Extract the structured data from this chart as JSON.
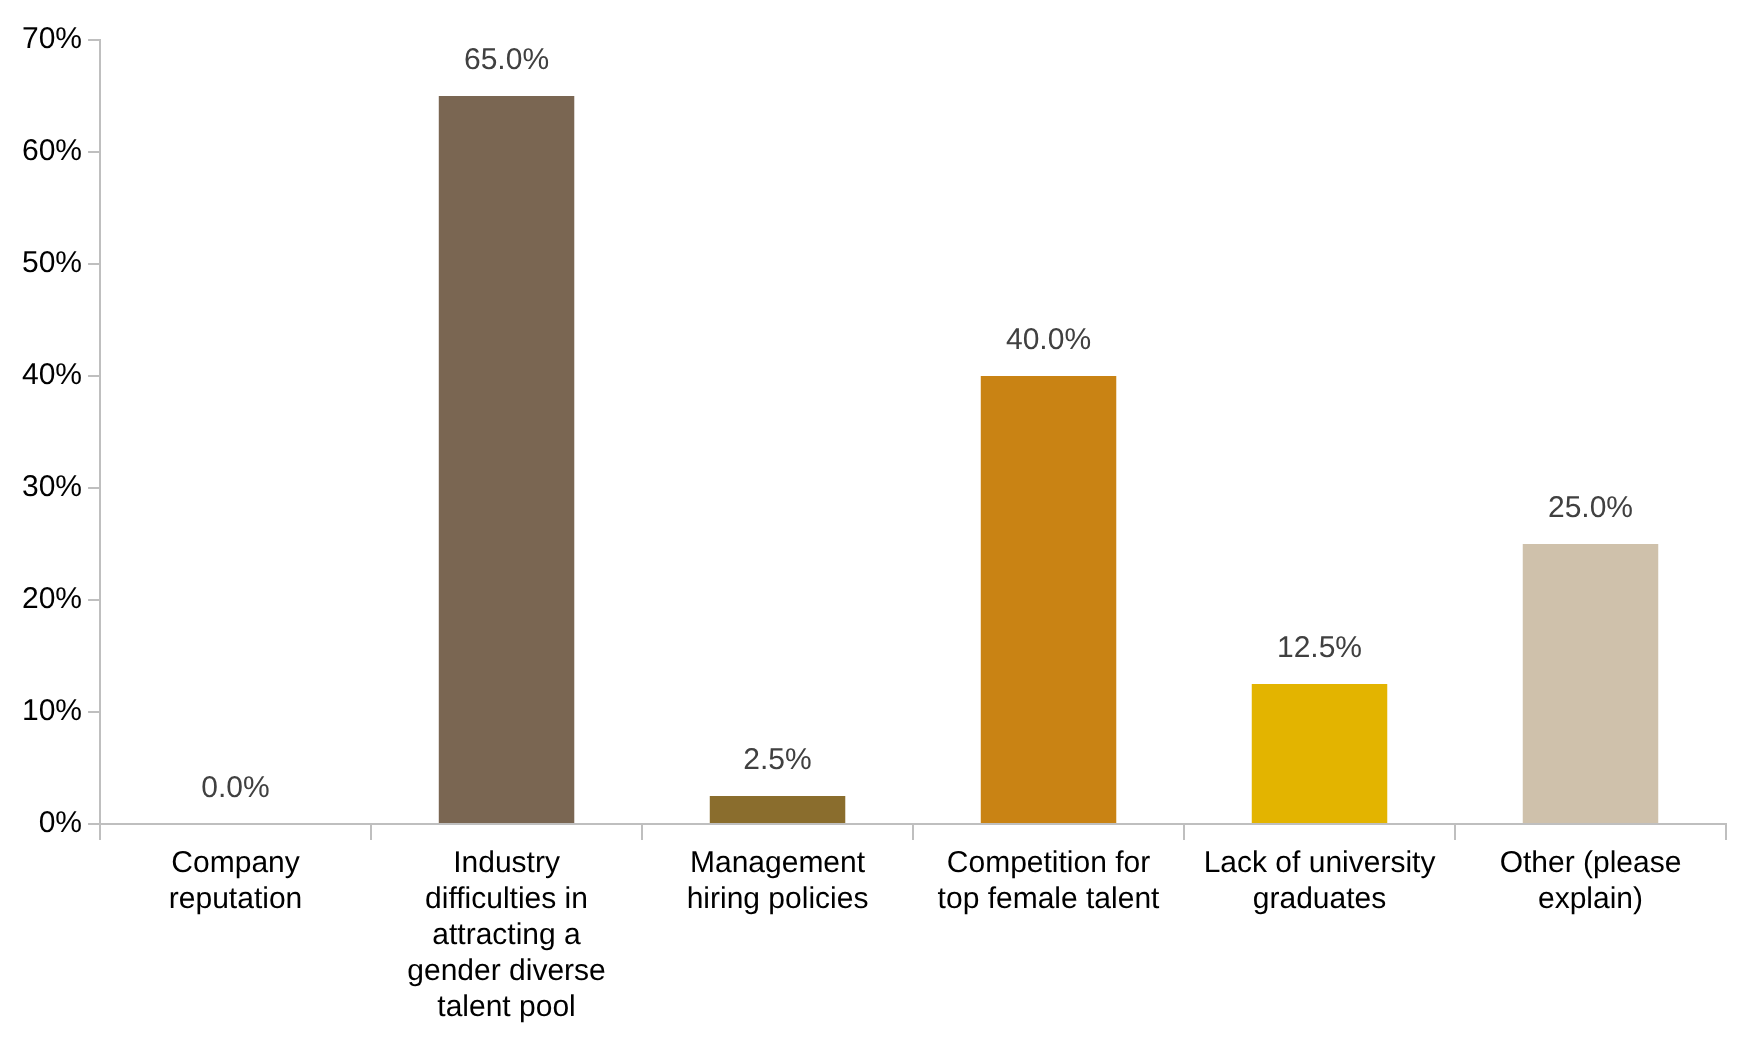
{
  "chart_data": {
    "type": "bar",
    "categories": [
      "Company reputation",
      "Industry difficulties in attracting a gender diverse talent pool",
      "Management hiring policies",
      "Competition for top female talent",
      "Lack of university graduates",
      "Other (please explain)"
    ],
    "values": [
      0,
      65,
      2.5,
      40,
      12.5,
      25
    ],
    "colors": [
      "#7a6652",
      "#7a6652",
      "#8a6d2d",
      "#c98314",
      "#e3b400",
      "#cfc1ab"
    ],
    "value_labels": [
      "0.0%",
      "65.0%",
      "2.5%",
      "40.0%",
      "12.5%",
      "25.0%"
    ],
    "ylim": [
      0,
      70
    ],
    "yticks": [
      {
        "value": 0,
        "label": "0%"
      },
      {
        "value": 10,
        "label": "10%"
      },
      {
        "value": 20,
        "label": "20%"
      },
      {
        "value": 30,
        "label": "30%"
      },
      {
        "value": 40,
        "label": "40%"
      },
      {
        "value": 50,
        "label": "50%"
      },
      {
        "value": 60,
        "label": "60%"
      },
      {
        "value": 70,
        "label": "70%"
      }
    ],
    "grid": false,
    "legend": false
  }
}
